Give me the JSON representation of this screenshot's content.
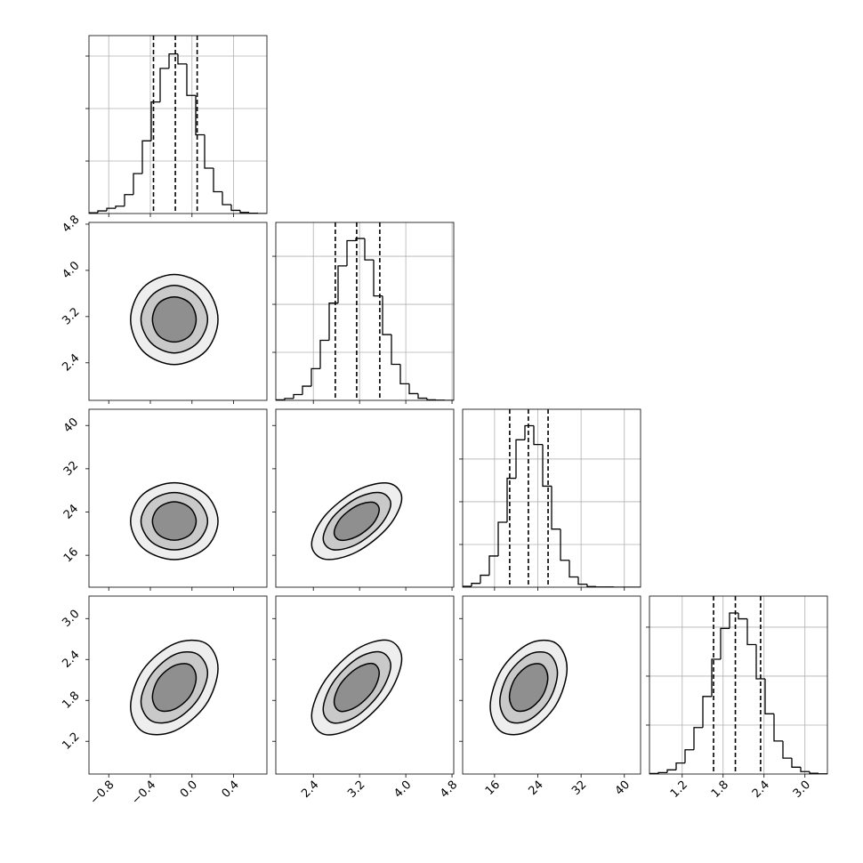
{
  "chart_data": [
    {
      "type": "histogram",
      "color": "#000000",
      "grid": true,
      "xlim": [
        -0.99,
        0.72
      ],
      "xticks": [
        {
          "value": -0.8,
          "label": "−0.8"
        },
        {
          "value": -0.4,
          "label": "−0.4"
        },
        {
          "value": 0,
          "label": "0.0"
        },
        0.4
      ],
      "ylim": [
        0,
        678
      ],
      "yticks": [
        200,
        400,
        600
      ],
      "bins": [
        -0.99,
        -0.9045,
        -0.819,
        -0.7335,
        -0.648,
        -0.5625,
        -0.477,
        -0.3915,
        -0.306,
        -0.2205,
        -0.135,
        -0.0495,
        0.036,
        0.1215,
        0.207,
        0.2925,
        0.378,
        0.4635,
        0.549,
        0.6345,
        0.72
      ],
      "values": [
        3,
        10,
        20,
        28,
        72,
        152,
        277,
        425,
        553,
        608,
        570,
        450,
        300,
        173,
        83,
        34,
        12,
        4,
        1,
        0
      ],
      "quantiles": [
        -0.37,
        -0.16,
        0.05
      ]
    },
    {
      "type": "contour",
      "colors": [
        "#eeeeee",
        "#c9c9c9",
        "#8f8f8f"
      ],
      "xlim": [
        -0.99,
        0.72
      ],
      "xticks": [
        {
          "value": -0.8,
          "label": "−0.8"
        },
        {
          "value": -0.4,
          "label": "−0.4"
        },
        {
          "value": 0,
          "label": "0.0"
        },
        0.4
      ],
      "ylim": [
        1.75,
        4.83
      ],
      "yticks": [
        2.4,
        3.2,
        {
          "value": 4,
          "label": "4.0"
        },
        4.8
      ],
      "contours": [
        {
          "x": [
            0.25,
            0.13,
            -0.17,
            -0.47,
            -0.59,
            -0.47,
            -0.17,
            0.13
          ],
          "y": [
            3.15,
            3.7,
            3.93,
            3.7,
            3.15,
            2.6,
            2.37,
            2.6
          ]
        },
        {
          "x": [
            0.15,
            0.05,
            -0.17,
            -0.39,
            -0.49,
            -0.39,
            -0.17,
            0.05
          ],
          "y": [
            3.15,
            3.56,
            3.74,
            3.56,
            3.15,
            2.74,
            2.57,
            2.74
          ]
        },
        {
          "x": [
            0.04,
            -0.02,
            -0.17,
            -0.32,
            -0.38,
            -0.32,
            -0.17,
            -0.02
          ],
          "y": [
            3.15,
            3.43,
            3.54,
            3.43,
            3.15,
            2.87,
            2.76,
            2.87
          ]
        }
      ]
    },
    {
      "type": "histogram",
      "color": "#000000",
      "grid": true,
      "xlim": [
        1.75,
        4.83
      ],
      "xticks": [
        2.4,
        3.2,
        {
          "value": 4,
          "label": "4.0"
        },
        4.8
      ],
      "ylim": [
        0,
        741
      ],
      "yticks": [
        200,
        400,
        600
      ],
      "bins": [
        1.75,
        1.904,
        2.058,
        2.212,
        2.366,
        2.52,
        2.674,
        2.828,
        2.982,
        3.136,
        3.29,
        3.444,
        3.598,
        3.752,
        3.906,
        4.06,
        4.214,
        4.368,
        4.522,
        4.676,
        4.83
      ],
      "values": [
        2,
        8,
        24,
        59,
        132,
        250,
        405,
        560,
        665,
        674,
        585,
        435,
        274,
        150,
        69,
        28,
        9,
        2,
        1,
        0
      ],
      "quantiles": [
        2.78,
        3.15,
        3.55
      ]
    },
    {
      "type": "contour",
      "colors": [
        "#eeeeee",
        "#c9c9c9",
        "#8f8f8f"
      ],
      "xlim": [
        -0.99,
        0.72
      ],
      "xticks": [
        {
          "value": -0.8,
          "label": "−0.8"
        },
        {
          "value": -0.4,
          "label": "−0.4"
        },
        {
          "value": 0,
          "label": "0.0"
        },
        0.4
      ],
      "ylim": [
        10.1,
        43.0
      ],
      "yticks": [
        16,
        24,
        32,
        40
      ],
      "contours": [
        {
          "x": [
            0.25,
            0.13,
            -0.17,
            -0.47,
            -0.59,
            -0.47,
            -0.17,
            0.13
          ],
          "y": [
            22.3,
            27.3,
            29.4,
            27.3,
            22.3,
            17.3,
            15.2,
            17.3
          ]
        },
        {
          "x": [
            0.15,
            0.05,
            -0.17,
            -0.39,
            -0.49,
            -0.39,
            -0.17,
            0.05
          ],
          "y": [
            22.3,
            26.1,
            27.6,
            26.1,
            22.3,
            18.5,
            17.0,
            18.5
          ]
        },
        {
          "x": [
            0.04,
            -0.02,
            -0.17,
            -0.32,
            -0.38,
            -0.32,
            -0.17,
            -0.02
          ],
          "y": [
            22.3,
            24.8,
            25.9,
            24.8,
            22.3,
            19.8,
            18.8,
            19.8
          ]
        }
      ]
    },
    {
      "type": "contour",
      "colors": [
        "#eeeeee",
        "#c9c9c9",
        "#8f8f8f"
      ],
      "xlim": [
        1.75,
        4.83
      ],
      "xticks": [
        2.4,
        3.2,
        {
          "value": 4,
          "label": "4.0"
        },
        4.8
      ],
      "ylim": [
        10.1,
        43.0
      ],
      "yticks": [
        16,
        24,
        32,
        40
      ],
      "contours": [
        {
          "x": [
            3.93,
            3.7,
            3.15,
            2.6,
            2.37,
            2.6,
            3.15,
            3.7
          ],
          "y": [
            26.56,
            29.33,
            27.98,
            23.3,
            18.04,
            15.27,
            16.62,
            21.3
          ]
        },
        {
          "x": [
            3.74,
            3.56,
            3.15,
            2.74,
            2.57,
            2.74,
            3.15,
            3.56
          ],
          "y": [
            25.5,
            27.57,
            26.56,
            23.05,
            19.1,
            17.03,
            18.04,
            21.55
          ]
        },
        {
          "x": [
            3.54,
            3.43,
            3.15,
            2.87,
            2.76,
            2.87,
            3.15,
            3.43
          ],
          "y": [
            24.43,
            25.81,
            25.14,
            22.8,
            20.17,
            18.79,
            19.46,
            21.8
          ]
        }
      ]
    },
    {
      "type": "histogram",
      "color": "#000000",
      "grid": true,
      "xlim": [
        10.1,
        43.0
      ],
      "xticks": [
        16,
        24,
        32,
        40
      ],
      "ylim": [
        0,
        833
      ],
      "yticks": [
        200,
        400,
        600
      ],
      "bins": [
        10.1,
        11.745,
        13.39,
        15.035,
        16.68,
        18.325,
        19.97,
        21.615,
        23.26,
        24.905,
        26.55,
        28.195,
        29.84,
        31.485,
        33.13,
        34.775,
        36.42,
        38.065,
        39.71,
        41.355,
        43.0
      ],
      "values": [
        4,
        18,
        56,
        146,
        304,
        510,
        690,
        756,
        668,
        473,
        272,
        126,
        48,
        14,
        3,
        1,
        1,
        0,
        0,
        0
      ],
      "quantiles": [
        18.8,
        22.25,
        25.9
      ]
    },
    {
      "type": "contour",
      "colors": [
        "#eeeeee",
        "#c9c9c9",
        "#8f8f8f"
      ],
      "xlim": [
        -0.99,
        0.72
      ],
      "xticks": [
        {
          "value": -0.8,
          "label": "−0.8"
        },
        {
          "value": -0.4,
          "label": "−0.4"
        },
        {
          "value": 0,
          "label": "0.0"
        },
        0.4
      ],
      "ylim": [
        0.72,
        3.33
      ],
      "yticks": [
        1.2,
        1.8,
        2.4,
        {
          "value": 3,
          "label": "3.0"
        }
      ],
      "contours": [
        {
          "x": [
            0.25,
            0.13,
            -0.17,
            -0.47,
            -0.59,
            -0.47,
            -0.17,
            0.13
          ],
          "y": [
            2.27,
            2.64,
            2.63,
            2.25,
            1.71,
            1.34,
            1.35,
            1.73
          ]
        },
        {
          "x": [
            0.15,
            0.05,
            -0.17,
            -0.39,
            -0.49,
            -0.39,
            -0.17,
            0.05
          ],
          "y": [
            2.2,
            2.48,
            2.47,
            2.18,
            1.78,
            1.5,
            1.51,
            1.8
          ]
        },
        {
          "x": [
            0.04,
            -0.02,
            -0.17,
            -0.32,
            -0.38,
            -0.32,
            -0.17,
            -0.02
          ],
          "y": [
            2.13,
            2.32,
            2.31,
            2.12,
            1.85,
            1.66,
            1.67,
            1.86
          ]
        }
      ]
    },
    {
      "type": "contour",
      "colors": [
        "#eeeeee",
        "#c9c9c9",
        "#8f8f8f"
      ],
      "xlim": [
        1.75,
        4.83
      ],
      "xticks": [
        2.4,
        3.2,
        {
          "value": 4,
          "label": "4.0"
        },
        4.8
      ],
      "ylim": [
        0.72,
        3.33
      ],
      "yticks": [
        1.2,
        1.8,
        2.4,
        {
          "value": 3,
          "label": "3.0"
        }
      ],
      "contours": [
        {
          "x": [
            3.93,
            3.7,
            3.15,
            2.6,
            2.37,
            2.6,
            3.15,
            3.7
          ],
          "y": [
            2.41,
            2.68,
            2.55,
            2.09,
            1.57,
            1.3,
            1.43,
            1.89
          ]
        },
        {
          "x": [
            3.74,
            3.56,
            3.15,
            2.74,
            2.57,
            2.74,
            3.15,
            3.56
          ],
          "y": [
            2.31,
            2.51,
            2.41,
            2.06,
            1.67,
            1.47,
            1.57,
            1.92
          ]
        },
        {
          "x": [
            3.54,
            3.43,
            3.15,
            2.87,
            2.76,
            2.87,
            3.15,
            3.43
          ],
          "y": [
            2.2,
            2.34,
            2.27,
            2.04,
            1.78,
            1.64,
            1.71,
            1.94
          ]
        }
      ]
    },
    {
      "type": "contour",
      "colors": [
        "#eeeeee",
        "#c9c9c9",
        "#8f8f8f"
      ],
      "xlim": [
        10.1,
        43.0
      ],
      "xticks": [
        16,
        24,
        32,
        40
      ],
      "ylim": [
        0.72,
        3.33
      ],
      "yticks": [
        1.2,
        1.8,
        2.4,
        {
          "value": 3,
          "label": "3.0"
        }
      ],
      "contours": [
        {
          "x": [
            29.4,
            27.32,
            22.3,
            17.28,
            15.2,
            17.28,
            22.3,
            27.32
          ],
          "y": [
            2.27,
            2.64,
            2.63,
            2.25,
            1.71,
            1.34,
            1.35,
            1.73
          ]
        },
        {
          "x": [
            27.63,
            26.06,
            22.3,
            18.54,
            16.98,
            18.54,
            22.3,
            26.06
          ],
          "y": [
            2.2,
            2.48,
            2.47,
            2.18,
            1.78,
            1.5,
            1.51,
            1.8
          ]
        },
        {
          "x": [
            25.85,
            24.81,
            22.3,
            19.79,
            18.75,
            19.79,
            22.3,
            24.81
          ],
          "y": [
            2.13,
            2.32,
            2.31,
            2.12,
            1.85,
            1.66,
            1.67,
            1.86
          ]
        }
      ]
    },
    {
      "type": "histogram",
      "color": "#000000",
      "grid": true,
      "xlim": [
        0.72,
        3.33
      ],
      "xticks": [
        1.2,
        1.8,
        2.4,
        {
          "value": 3,
          "label": "3.0"
        }
      ],
      "ylim": [
        0,
        727
      ],
      "yticks": [
        200,
        400,
        600
      ],
      "bins": [
        0.72,
        0.8505,
        0.981,
        1.1115,
        1.242,
        1.3725,
        1.503,
        1.6335,
        1.764,
        1.8945,
        2.025,
        2.1555,
        2.286,
        2.4165,
        2.547,
        2.6775,
        2.808,
        2.9385,
        3.069,
        3.1995,
        3.33
      ],
      "values": [
        2,
        6,
        17,
        45,
        99,
        190,
        317,
        469,
        595,
        658,
        634,
        529,
        389,
        246,
        135,
        65,
        28,
        10,
        3,
        1
      ],
      "quantiles": [
        1.66,
        1.98,
        2.35
      ]
    }
  ]
}
